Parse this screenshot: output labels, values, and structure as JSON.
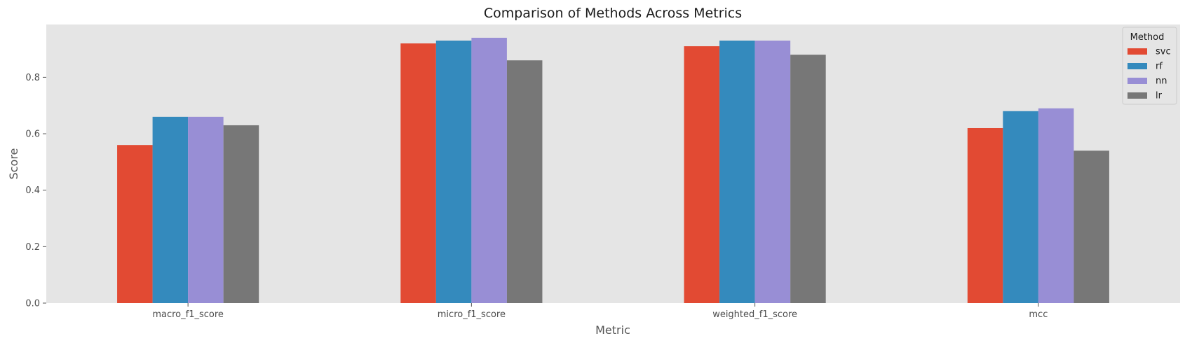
{
  "chart_data": {
    "type": "bar",
    "title": "Comparison of Methods Across Metrics",
    "xlabel": "Metric",
    "ylabel": "Score",
    "categories": [
      "macro_f1_score",
      "micro_f1_score",
      "weighted_f1_score",
      "mcc"
    ],
    "series": [
      {
        "name": "svc",
        "color": "#E24A33",
        "values": [
          0.56,
          0.92,
          0.91,
          0.62
        ]
      },
      {
        "name": "rf",
        "color": "#348ABD",
        "values": [
          0.66,
          0.93,
          0.93,
          0.68
        ]
      },
      {
        "name": "nn",
        "color": "#988ED5",
        "values": [
          0.66,
          0.94,
          0.93,
          0.69
        ]
      },
      {
        "name": "lr",
        "color": "#777777",
        "values": [
          0.63,
          0.86,
          0.88,
          0.54
        ]
      }
    ],
    "ylim": [
      0,
      0.987
    ],
    "yticks": [
      "0.0",
      "0.2",
      "0.4",
      "0.6",
      "0.8"
    ],
    "legend_title": "Method",
    "legend_position": "top-right",
    "grid": false,
    "background": "#E5E5E5"
  }
}
